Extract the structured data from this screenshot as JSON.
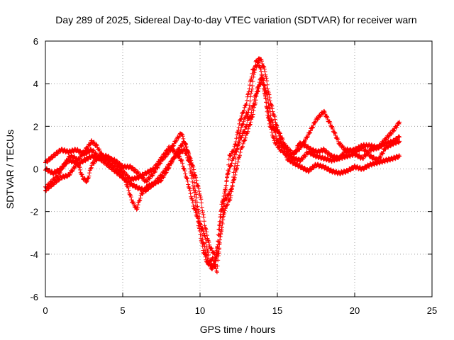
{
  "chart_data": {
    "type": "scatter",
    "title": "Day 289 of 2025, Sidereal Day-to-day VTEC variation (SDTVAR) for receiver warn",
    "xlabel": "GPS time / hours",
    "ylabel": "SDTVAR / TECUs",
    "xlim": [
      0,
      25
    ],
    "ylim": [
      -6,
      6
    ],
    "xticks": [
      "0",
      "5",
      "10",
      "15",
      "20",
      "25"
    ],
    "yticks": [
      "-6",
      "-4",
      "-2",
      "0",
      "2",
      "4",
      "6"
    ],
    "grid": true,
    "marker": "+",
    "series": [
      {
        "name": "SDTVAR",
        "color": "#ff0000",
        "tracks": [
          [
            [
              0,
              0.3
            ],
            [
              0.5,
              0.6
            ],
            [
              1,
              0.9
            ],
            [
              1.5,
              0.8
            ],
            [
              2,
              0.9
            ],
            [
              2.5,
              0.7
            ],
            [
              3,
              0.9
            ],
            [
              3.5,
              0.5
            ],
            [
              4,
              0.5
            ],
            [
              4.5,
              0.4
            ],
            [
              5,
              0.1
            ],
            [
              5.5,
              0.1
            ],
            [
              6,
              -0.2
            ],
            [
              6.5,
              -0.6
            ],
            [
              7,
              -0.2
            ],
            [
              7.5,
              0.4
            ],
            [
              8,
              0.8
            ],
            [
              8.5,
              1.4
            ],
            [
              8.8,
              1.7
            ],
            [
              9,
              1.2
            ],
            [
              9.5,
              0.2
            ],
            [
              10,
              -1.2
            ],
            [
              10.3,
              -2.6
            ],
            [
              10.6,
              -3.6
            ],
            [
              11,
              -4.1
            ],
            [
              11.2,
              -3.4
            ],
            [
              11.4,
              -1.7
            ],
            [
              11.6,
              -1.1
            ],
            [
              11.8,
              -0.2
            ],
            [
              12.2,
              0.6
            ],
            [
              12.6,
              1.4
            ],
            [
              13,
              2.0
            ],
            [
              13.3,
              3.5
            ],
            [
              13.6,
              5.0
            ],
            [
              13.9,
              5.2
            ],
            [
              14.2,
              4.6
            ],
            [
              14.5,
              3.3
            ],
            [
              15,
              1.9
            ],
            [
              15.5,
              1.1
            ],
            [
              16,
              0.7
            ],
            [
              16.5,
              1.0
            ],
            [
              17,
              1.6
            ],
            [
              17.5,
              2.3
            ],
            [
              18,
              2.7
            ],
            [
              18.5,
              2.0
            ],
            [
              19,
              1.2
            ],
            [
              19.5,
              0.8
            ],
            [
              20,
              0.9
            ],
            [
              20.5,
              1.1
            ],
            [
              21,
              1.1
            ],
            [
              21.5,
              1.0
            ],
            [
              22,
              1.4
            ],
            [
              22.5,
              1.8
            ],
            [
              22.9,
              2.2
            ]
          ],
          [
            [
              0,
              0.0
            ],
            [
              0.5,
              -0.2
            ],
            [
              1,
              0.0
            ],
            [
              1.5,
              0.4
            ],
            [
              2,
              0.3
            ],
            [
              2.5,
              0.8
            ],
            [
              3,
              1.3
            ],
            [
              3.3,
              1.1
            ],
            [
              3.7,
              0.6
            ],
            [
              4,
              0.4
            ],
            [
              4.5,
              0.1
            ],
            [
              5,
              -0.3
            ],
            [
              5.3,
              -0.8
            ],
            [
              5.6,
              -1.5
            ],
            [
              5.9,
              -1.9
            ],
            [
              6.2,
              -1.2
            ],
            [
              6.6,
              -0.8
            ],
            [
              7,
              -0.7
            ],
            [
              7.5,
              -0.5
            ],
            [
              8,
              0.1
            ],
            [
              8.5,
              0.8
            ],
            [
              9,
              1.3
            ],
            [
              9.3,
              0.6
            ],
            [
              9.6,
              -0.5
            ],
            [
              9.9,
              -2.0
            ],
            [
              10.2,
              -3.4
            ],
            [
              10.5,
              -4.3
            ],
            [
              10.8,
              -4.6
            ],
            [
              11,
              -4.3
            ],
            [
              11.2,
              -3.9
            ],
            [
              11.4,
              -2.7
            ],
            [
              11.6,
              -1.5
            ],
            [
              12,
              -1.0
            ],
            [
              12.3,
              -0.2
            ],
            [
              12.6,
              0.8
            ],
            [
              13,
              1.6
            ],
            [
              13.4,
              2.5
            ],
            [
              13.7,
              3.6
            ],
            [
              14,
              4.2
            ],
            [
              14.3,
              3.6
            ],
            [
              14.6,
              2.4
            ],
            [
              15,
              1.3
            ],
            [
              15.5,
              1.0
            ],
            [
              16,
              0.5
            ],
            [
              16.5,
              0.4
            ],
            [
              17,
              0.8
            ],
            [
              17.5,
              0.6
            ],
            [
              18,
              0.5
            ],
            [
              18.5,
              0.4
            ],
            [
              19,
              0.5
            ],
            [
              19.5,
              0.6
            ],
            [
              20,
              0.7
            ],
            [
              20.5,
              0.5
            ],
            [
              21,
              0.9
            ],
            [
              21.5,
              1.0
            ],
            [
              22,
              1.2
            ],
            [
              22.5,
              1.3
            ],
            [
              22.9,
              1.5
            ]
          ],
          [
            [
              0,
              -1.0
            ],
            [
              0.5,
              -0.7
            ],
            [
              1,
              -0.4
            ],
            [
              1.5,
              -0.3
            ],
            [
              2,
              0.2
            ],
            [
              2.5,
              0.4
            ],
            [
              3,
              0.6
            ],
            [
              3.5,
              0.5
            ],
            [
              4,
              0.2
            ],
            [
              4.5,
              -0.1
            ],
            [
              5,
              -0.4
            ],
            [
              5.5,
              -0.7
            ],
            [
              6,
              -0.9
            ],
            [
              6.5,
              -1.0
            ],
            [
              7,
              -0.7
            ],
            [
              7.5,
              -0.3
            ],
            [
              8,
              0.2
            ],
            [
              8.5,
              0.7
            ],
            [
              9,
              0.9
            ],
            [
              9.3,
              0.3
            ],
            [
              9.6,
              -1.0
            ],
            [
              9.9,
              -2.6
            ],
            [
              10.2,
              -3.8
            ],
            [
              10.5,
              -4.5
            ],
            [
              10.8,
              -4.2
            ],
            [
              11.1,
              -4.8
            ],
            [
              11.3,
              -3.2
            ],
            [
              11.6,
              -1.9
            ],
            [
              12,
              -1.3
            ],
            [
              12.3,
              0.5
            ],
            [
              12.6,
              1.8
            ],
            [
              13,
              2.6
            ],
            [
              13.2,
              2.3
            ],
            [
              13.6,
              3.5
            ],
            [
              14,
              4.4
            ],
            [
              14.3,
              3.0
            ],
            [
              14.6,
              2.0
            ],
            [
              15,
              1.8
            ],
            [
              15.3,
              1.2
            ],
            [
              15.6,
              0.5
            ],
            [
              16,
              0.3
            ],
            [
              16.5,
              0.1
            ],
            [
              17,
              -0.1
            ],
            [
              17.5,
              0.2
            ],
            [
              18,
              0.1
            ],
            [
              18.5,
              -0.1
            ],
            [
              19,
              -0.2
            ],
            [
              19.5,
              -0.1
            ],
            [
              20,
              0.1
            ],
            [
              20.5,
              0.0
            ],
            [
              21,
              0.2
            ],
            [
              21.5,
              0.3
            ],
            [
              22,
              0.4
            ],
            [
              22.5,
              0.5
            ],
            [
              22.9,
              0.6
            ]
          ],
          [
            [
              0,
              -0.9
            ],
            [
              0.4,
              -0.6
            ],
            [
              0.8,
              -0.3
            ],
            [
              1.2,
              0.2
            ],
            [
              1.6,
              0.6
            ],
            [
              2,
              0.5
            ],
            [
              2.4,
              -0.4
            ],
            [
              2.7,
              -0.6
            ],
            [
              3,
              0.2
            ],
            [
              3.5,
              0.6
            ],
            [
              4,
              0.6
            ],
            [
              4.5,
              0.3
            ],
            [
              5,
              -0.1
            ],
            [
              5.5,
              -0.5
            ],
            [
              6,
              -0.4
            ],
            [
              6.5,
              -0.2
            ],
            [
              7,
              0.0
            ],
            [
              7.5,
              0.5
            ],
            [
              8,
              1.0
            ],
            [
              8.4,
              0.8
            ],
            [
              8.8,
              0.4
            ],
            [
              9.2,
              -0.6
            ],
            [
              9.6,
              -1.8
            ],
            [
              10,
              -2.6
            ],
            [
              10.3,
              -3.1
            ],
            [
              10.7,
              -4.7
            ],
            [
              11,
              -4.5
            ],
            [
              11.3,
              -2.2
            ],
            [
              11.6,
              -1.4
            ],
            [
              11.9,
              0.6
            ],
            [
              12.2,
              0.9
            ],
            [
              12.6,
              2.3
            ],
            [
              13,
              3.1
            ],
            [
              13.4,
              4.6
            ],
            [
              13.8,
              5.0
            ],
            [
              14.1,
              4.1
            ],
            [
              14.4,
              2.4
            ],
            [
              14.8,
              1.3
            ],
            [
              15.2,
              0.9
            ],
            [
              15.6,
              0.7
            ],
            [
              16,
              0.5
            ],
            [
              16.4,
              1.2
            ],
            [
              16.8,
              1.1
            ],
            [
              17.2,
              0.9
            ],
            [
              17.6,
              0.8
            ],
            [
              18,
              0.9
            ],
            [
              18.5,
              0.6
            ],
            [
              19,
              0.5
            ],
            [
              19.5,
              0.9
            ],
            [
              20,
              0.8
            ],
            [
              20.5,
              1.0
            ],
            [
              21,
              0.6
            ],
            [
              21.5,
              0.4
            ],
            [
              22,
              1.0
            ],
            [
              22.5,
              1.2
            ],
            [
              22.9,
              1.3
            ]
          ]
        ]
      }
    ]
  }
}
